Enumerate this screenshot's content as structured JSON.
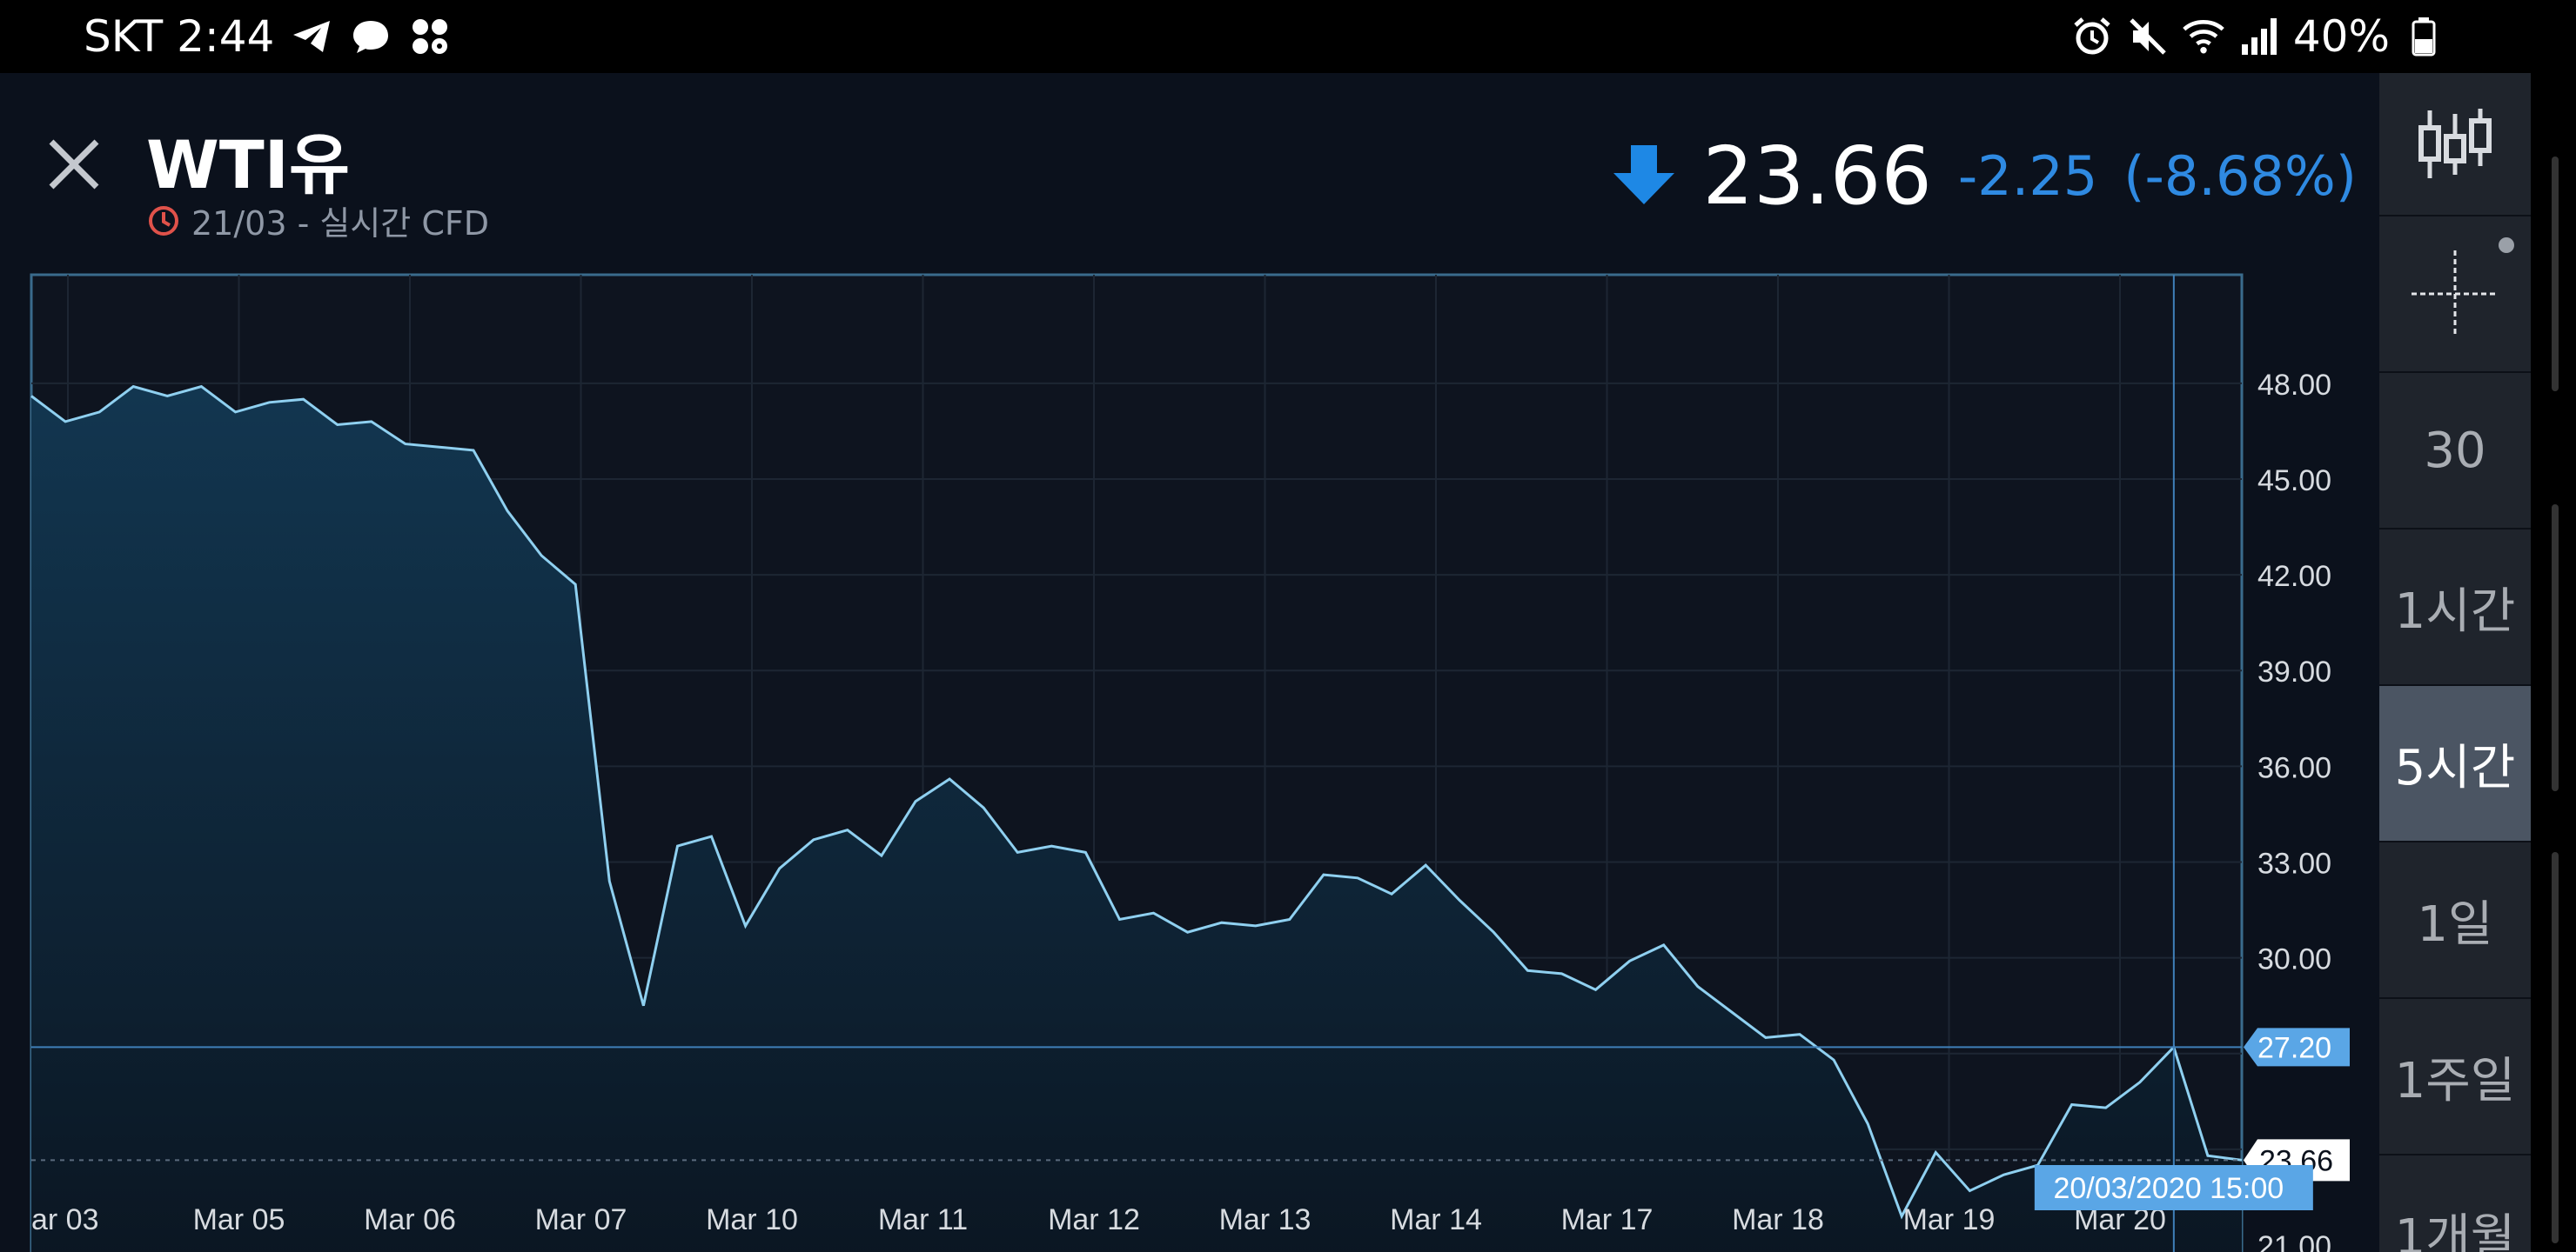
{
  "status_bar": {
    "carrier_time": "SKT 2:44",
    "battery": "40%",
    "icons_left": [
      "telegram-icon",
      "chat-icon",
      "app-grid-icon"
    ],
    "icons_right": [
      "alarm-icon",
      "mute-icon",
      "wifi-icon",
      "signal-icon",
      "battery-icon"
    ]
  },
  "header": {
    "title": "WTI유",
    "subtitle": "21/03 - 실시간 CFD",
    "last_price": "23.66",
    "change": "-2.25",
    "change_pct": "(-8.68%)",
    "direction": "down"
  },
  "colors": {
    "background": "#0b111c",
    "line": "#8fd0f0",
    "accent": "#2f8ae2",
    "crosshair_badge": "#5aa6e6",
    "clock": "#e0524a"
  },
  "toolbar": {
    "items": [
      {
        "label": "",
        "icon": "candlestick-chart-icon"
      },
      {
        "label": "",
        "icon": "crosshair-icon"
      },
      {
        "label": "30"
      },
      {
        "label": "1시간"
      },
      {
        "label": "5시간",
        "active": true
      },
      {
        "label": "1일"
      },
      {
        "label": "1주일"
      },
      {
        "label": "1개월"
      }
    ]
  },
  "chart_data": {
    "type": "area",
    "x_tick_labels": [
      "ar 03",
      "Mar 05",
      "Mar 06",
      "Mar 07",
      "Mar 10",
      "Mar 11",
      "Mar 12",
      "Mar 13",
      "Mar 14",
      "Mar 17",
      "Mar 18",
      "Mar 19",
      "Mar 20"
    ],
    "y_ticks": [
      48.0,
      45.0,
      42.0,
      39.0,
      36.0,
      33.0,
      30.0,
      27.0,
      24.0,
      21.0
    ],
    "y_tick_labels": [
      "48.00",
      "45.00",
      "42.00",
      "39.00",
      "36.00",
      "33.00",
      "30.00",
      "24.00",
      "21.00"
    ],
    "ylim": [
      20.4,
      51.4
    ],
    "values": [
      47.6,
      46.8,
      47.1,
      47.9,
      47.6,
      47.9,
      47.1,
      47.4,
      47.5,
      46.7,
      46.8,
      46.1,
      46.0,
      45.9,
      44.0,
      42.6,
      41.7,
      32.4,
      28.5,
      33.5,
      33.8,
      31.0,
      32.8,
      33.7,
      34.0,
      33.2,
      34.9,
      35.6,
      34.7,
      33.3,
      33.5,
      33.3,
      31.2,
      31.4,
      30.8,
      31.1,
      31.0,
      31.2,
      32.6,
      32.5,
      32.0,
      32.9,
      31.8,
      30.8,
      29.6,
      29.5,
      29.0,
      29.9,
      30.4,
      29.1,
      28.3,
      27.5,
      27.6,
      26.8,
      24.8,
      21.9,
      23.9,
      22.7,
      23.2,
      23.5,
      25.4,
      25.3,
      26.1,
      27.2,
      23.8,
      23.66
    ],
    "crosshair": {
      "value": "27.20",
      "date": "20/03/2020 15:00"
    },
    "last_value_label": "23.66",
    "grid": true
  }
}
